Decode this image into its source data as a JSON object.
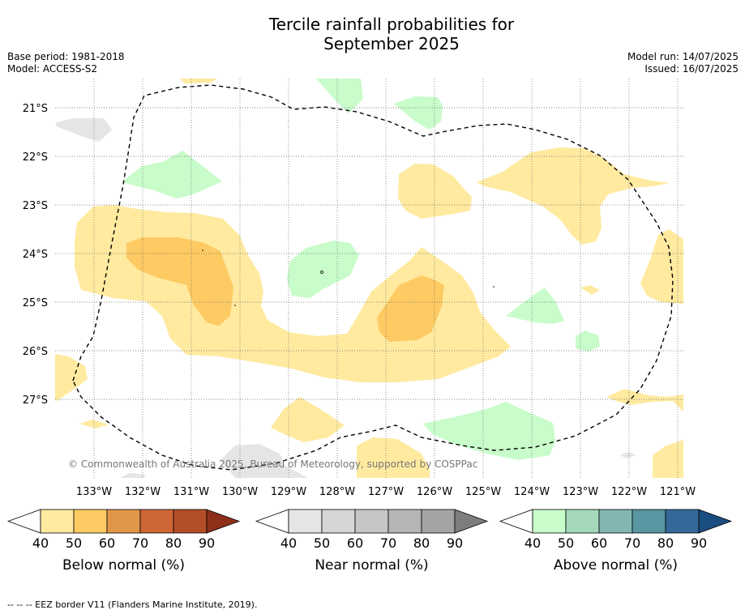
{
  "title_line1": "Tercile rainfall probabilities for",
  "title_line2": "September 2025",
  "base_period": "Base period: 1981-2018",
  "model": "Model: ACCESS-S2",
  "model_run": "Model run: 14/07/2025",
  "issued": "Issued: 16/07/2025",
  "copyright": "© Commonwealth of Australia 2025, Bureau of Meteorology, supported by COSPPac",
  "lat_labels": [
    "21°S",
    "22°S",
    "23°S",
    "24°S",
    "25°S",
    "26°S",
    "27°S"
  ],
  "lon_labels": [
    "133°W",
    "132°W",
    "131°W",
    "130°W",
    "129°W",
    "128°W",
    "127°W",
    "126°W",
    "125°W",
    "124°W",
    "123°W",
    "122°W",
    "121°W"
  ],
  "colorbars": [
    {
      "label": "Below normal (%)",
      "ticks": [
        "40",
        "50",
        "60",
        "70",
        "80",
        "90"
      ],
      "colors": [
        "#ffeaa0",
        "#fdca63",
        "#e0974a",
        "#ce6635",
        "#b24e28",
        "#8e2f1a"
      ]
    },
    {
      "label": "Near normal (%)",
      "ticks": [
        "40",
        "50",
        "60",
        "70",
        "80",
        "90"
      ],
      "colors": [
        "#e5e5e5",
        "#d6d6d6",
        "#c6c6c6",
        "#b5b5b5",
        "#a4a4a4",
        "#7d7d7d"
      ]
    },
    {
      "label": "Above normal (%)",
      "ticks": [
        "40",
        "50",
        "60",
        "70",
        "80",
        "90"
      ],
      "colors": [
        "#c8fcca",
        "#a4d8bb",
        "#82b7b1",
        "#5a95a2",
        "#336898",
        "#1a4d80"
      ]
    }
  ],
  "eez_legend": "--  --  -- EEZ border V11 (Flanders Marine Institute, 2019)."
}
